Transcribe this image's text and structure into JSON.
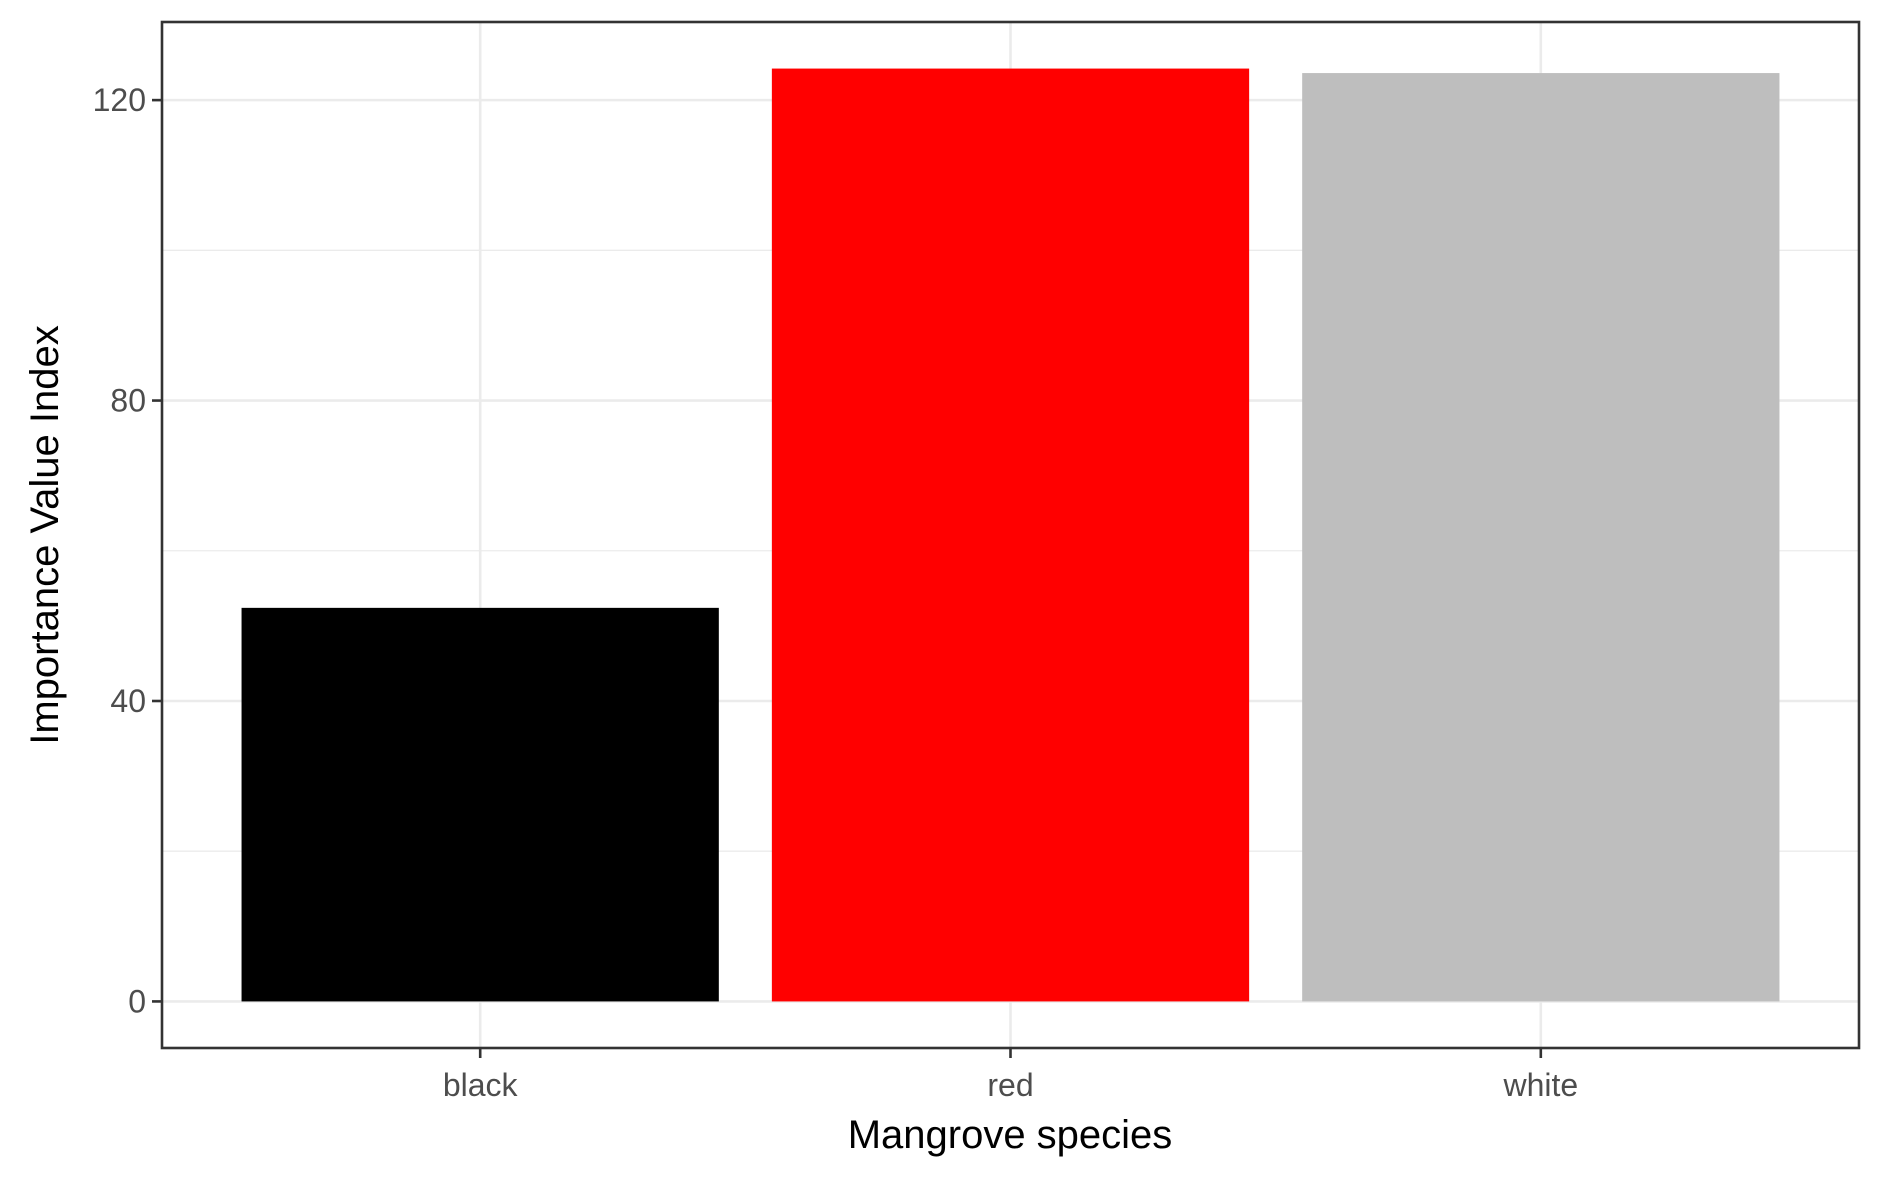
{
  "chart_data": {
    "type": "bar",
    "categories": [
      "black",
      "red",
      "white"
    ],
    "values": [
      52.4,
      124.2,
      123.6
    ],
    "colors": [
      "#000000",
      "#ff0000",
      "#bebebe"
    ],
    "xlabel": "Mangrove species",
    "ylabel": "Importance Value Index",
    "ylim": [
      -6.2,
      130.4
    ],
    "yticks": [
      0,
      40,
      80,
      120
    ],
    "yminor": [
      20,
      60,
      100
    ],
    "grid": true,
    "legend": "none"
  }
}
